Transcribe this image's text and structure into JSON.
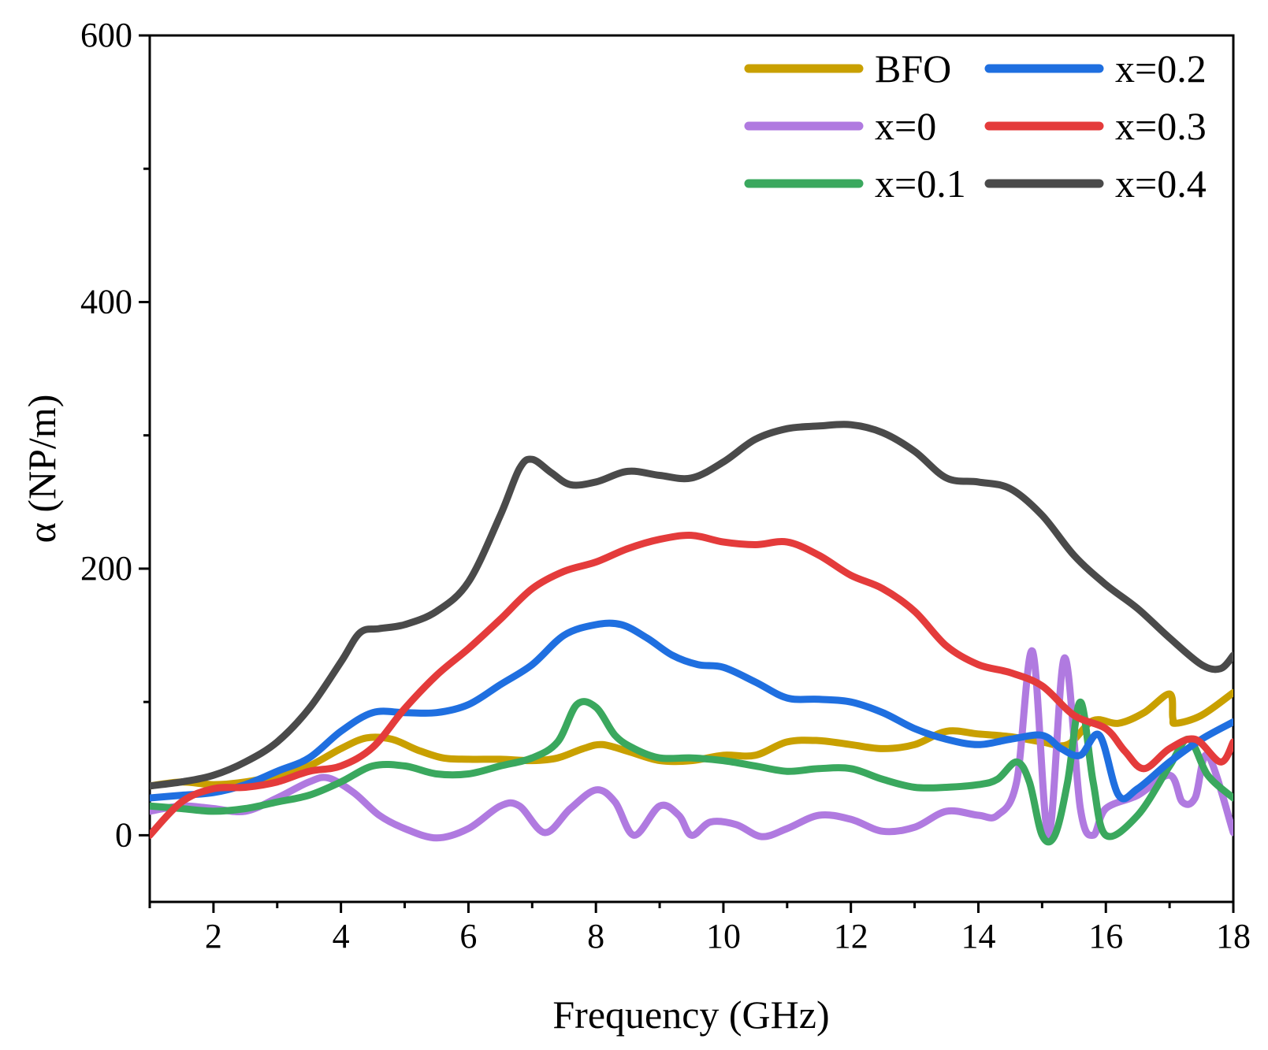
{
  "chart_data": {
    "type": "line",
    "title": "",
    "xlabel": "Frequency (GHz)",
    "ylabel": "α (NP/m)",
    "xlim": [
      1,
      18
    ],
    "ylim": [
      -50,
      600
    ],
    "x_ticks": [
      2,
      4,
      6,
      8,
      10,
      12,
      14,
      16,
      18
    ],
    "x_tick_labels": [
      "2",
      "4",
      "6",
      "8",
      "10",
      "12",
      "14",
      "16",
      "18"
    ],
    "y_ticks": [
      0,
      200,
      400,
      600
    ],
    "y_tick_labels": [
      "0",
      "200",
      "400",
      "600"
    ],
    "grid": false,
    "legend_position": "top-right",
    "series": [
      {
        "name": "BFO",
        "color": "#c9a000",
        "x": [
          1,
          1.5,
          2,
          2.5,
          3,
          3.5,
          4,
          4.4,
          4.8,
          5.2,
          5.6,
          6,
          6.5,
          7,
          7.4,
          7.8,
          8.1,
          8.5,
          9,
          9.5,
          10,
          10.5,
          11,
          11.5,
          12,
          12.5,
          13,
          13.5,
          14,
          14.5,
          15,
          15.4,
          15.8,
          16.2,
          16.6,
          17,
          17.05,
          17.1,
          17.5,
          18
        ],
        "y": [
          37,
          40,
          38,
          40,
          45,
          52,
          65,
          73,
          72,
          64,
          58,
          57,
          57,
          56,
          58,
          65,
          68,
          63,
          56,
          56,
          60,
          60,
          70,
          71,
          68,
          65,
          68,
          78,
          76,
          74,
          70,
          68,
          86,
          84,
          92,
          106,
          88,
          84,
          90,
          107
        ]
      },
      {
        "name": "x=0",
        "color": "#b07ae0",
        "x": [
          1,
          1.5,
          2,
          2.5,
          3,
          3.5,
          3.8,
          4.2,
          4.6,
          5,
          5.5,
          6,
          6.5,
          6.8,
          7.2,
          7.6,
          8,
          8.3,
          8.6,
          9,
          9.3,
          9.5,
          9.8,
          10.2,
          10.6,
          11,
          11.5,
          12,
          12.5,
          13,
          13.5,
          14,
          14.3,
          14.6,
          14.85,
          15.1,
          15.35,
          15.6,
          15.8,
          16,
          16.5,
          17,
          17.2,
          17.4,
          17.6,
          18
        ],
        "y": [
          18,
          22,
          20,
          18,
          28,
          40,
          43,
          32,
          15,
          5,
          -2,
          5,
          22,
          22,
          2,
          20,
          34,
          25,
          0,
          22,
          15,
          0,
          10,
          8,
          -1,
          5,
          15,
          12,
          3,
          6,
          18,
          15,
          15,
          40,
          138,
          0,
          133,
          20,
          0,
          20,
          30,
          45,
          25,
          28,
          60,
          2
        ]
      },
      {
        "name": "x=0.1",
        "color": "#3aa85e",
        "x": [
          1,
          1.5,
          2,
          2.5,
          3,
          3.5,
          4,
          4.5,
          5,
          5.5,
          6,
          6.5,
          7,
          7.4,
          7.7,
          8,
          8.3,
          8.6,
          9,
          9.5,
          10,
          10.5,
          11,
          11.5,
          12,
          12.5,
          13,
          13.5,
          14,
          14.3,
          14.6,
          14.8,
          15,
          15.2,
          15.4,
          15.6,
          15.8,
          16,
          16.5,
          17,
          17.3,
          17.6,
          18
        ],
        "y": [
          22,
          20,
          18,
          20,
          25,
          30,
          40,
          52,
          52,
          46,
          46,
          52,
          58,
          70,
          98,
          96,
          75,
          65,
          58,
          58,
          56,
          52,
          48,
          50,
          50,
          42,
          36,
          36,
          38,
          42,
          55,
          40,
          0,
          0,
          40,
          100,
          40,
          0,
          15,
          52,
          72,
          45,
          28
        ]
      },
      {
        "name": "x=0.2",
        "color": "#1f6fe0",
        "x": [
          1,
          1.5,
          2,
          2.5,
          3,
          3.5,
          4,
          4.5,
          5,
          5.5,
          6,
          6.5,
          7,
          7.5,
          8,
          8.4,
          8.8,
          9.2,
          9.6,
          10,
          10.5,
          11,
          11.5,
          12,
          12.5,
          13,
          13.5,
          14,
          14.5,
          15,
          15.3,
          15.6,
          15.9,
          16.2,
          16.5,
          17,
          17.5,
          18
        ],
        "y": [
          28,
          30,
          32,
          38,
          48,
          58,
          78,
          92,
          92,
          92,
          98,
          113,
          128,
          150,
          158,
          158,
          148,
          135,
          128,
          126,
          115,
          103,
          102,
          100,
          92,
          80,
          72,
          68,
          72,
          75,
          65,
          60,
          75,
          30,
          35,
          55,
          72,
          85
        ]
      },
      {
        "name": "x=0.3",
        "color": "#e43b3b",
        "x": [
          1,
          1.5,
          2,
          2.5,
          3,
          3.5,
          4,
          4.5,
          5,
          5.5,
          6,
          6.5,
          7,
          7.5,
          8,
          8.5,
          9,
          9.5,
          10,
          10.5,
          11,
          11.5,
          12,
          12.5,
          13,
          13.5,
          14,
          14.5,
          15,
          15.5,
          16,
          16.3,
          16.6,
          17,
          17.4,
          17.8,
          18
        ],
        "y": [
          0,
          25,
          35,
          36,
          40,
          48,
          52,
          66,
          95,
          120,
          140,
          162,
          185,
          198,
          205,
          215,
          222,
          225,
          220,
          218,
          220,
          210,
          195,
          185,
          168,
          142,
          128,
          122,
          112,
          90,
          80,
          63,
          50,
          65,
          72,
          55,
          70
        ]
      },
      {
        "name": "x=0.4",
        "color": "#4a4a4a",
        "x": [
          1,
          1.5,
          2,
          2.5,
          3,
          3.5,
          4,
          4.3,
          4.6,
          5,
          5.5,
          6,
          6.5,
          6.8,
          7,
          7.3,
          7.6,
          8,
          8.5,
          9,
          9.5,
          10,
          10.5,
          11,
          11.5,
          12,
          12.5,
          13,
          13.5,
          14,
          14.5,
          15,
          15.5,
          16,
          16.5,
          17,
          17.5,
          17.8,
          18
        ],
        "y": [
          37,
          40,
          45,
          55,
          70,
          95,
          130,
          152,
          155,
          158,
          168,
          190,
          240,
          275,
          282,
          272,
          263,
          265,
          273,
          270,
          268,
          280,
          297,
          305,
          307,
          308,
          302,
          288,
          268,
          265,
          260,
          240,
          210,
          188,
          170,
          148,
          128,
          125,
          135
        ]
      }
    ]
  }
}
